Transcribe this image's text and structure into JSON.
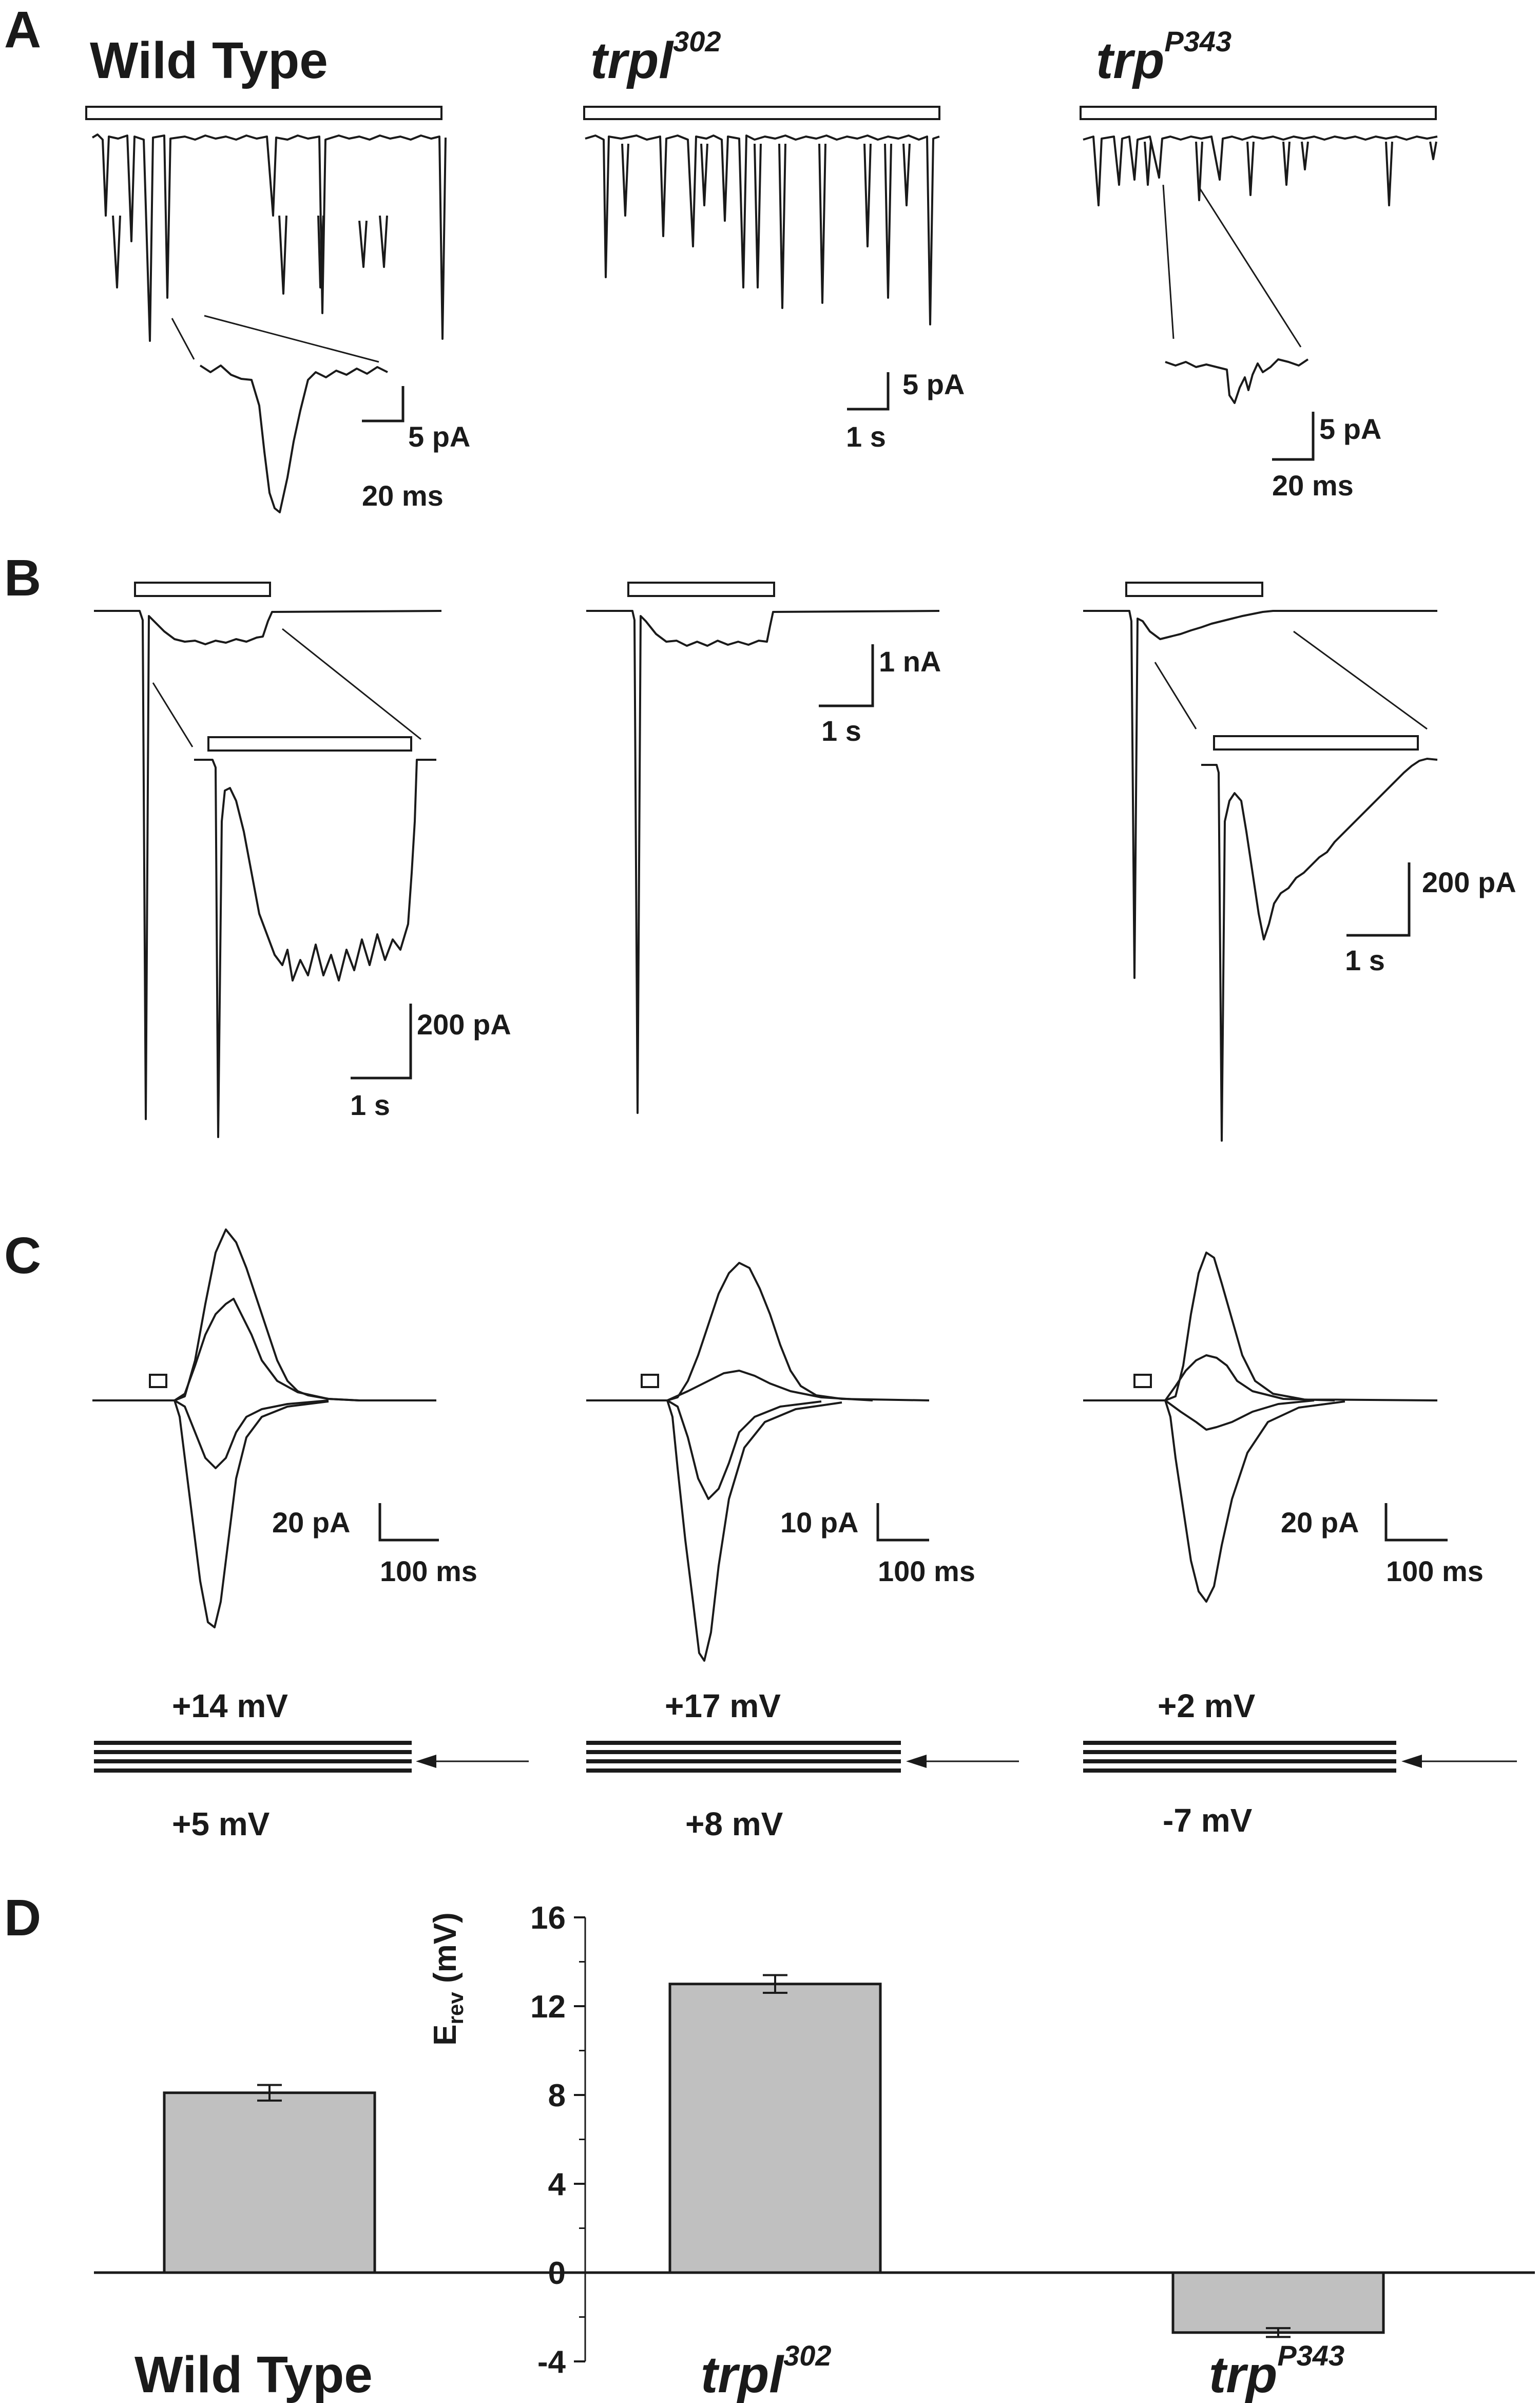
{
  "panel_labels": {
    "a": "A",
    "b": "B",
    "c": "C",
    "d": "D"
  },
  "genotypes": {
    "wt": {
      "name": "Wild Type"
    },
    "trpl": {
      "base": "trpl",
      "sup": "302"
    },
    "trp": {
      "base": "trp",
      "sup": "P343"
    }
  },
  "panel_a": {
    "wt_inset_scale": {
      "y": "5 pA",
      "x": "20 ms"
    },
    "trace_scale": {
      "y": "5 pA",
      "x": "1 s"
    },
    "trp_inset_scale": {
      "y": "5 pA",
      "x": "20 ms"
    }
  },
  "panel_b": {
    "trace_scale": {
      "y": "1 nA",
      "x": "1 s"
    },
    "wt_inset_scale": {
      "y": "200 pA",
      "x": "1 s"
    },
    "trp_inset_scale": {
      "y": "200 pA",
      "x": "1 s"
    }
  },
  "panel_c": {
    "wt": {
      "scale_y": "20 pA",
      "scale_x": "100 ms",
      "v_top": "+14 mV",
      "v_bottom": "+5 mV"
    },
    "trpl": {
      "scale_y": "10 pA",
      "scale_x": "100 ms",
      "v_top": "+17 mV",
      "v_bottom": "+8 mV"
    },
    "trp": {
      "scale_y": "20 pA",
      "scale_x": "100 ms",
      "v_top": "+2 mV",
      "v_bottom": "-7 mV"
    }
  },
  "chart_data": {
    "type": "bar",
    "ylabel": "E",
    "ylabel_sub": "rev",
    "ylabel_unit": " (mV)",
    "ylim": [
      -4,
      16
    ],
    "yticks": [
      -4,
      0,
      4,
      8,
      12,
      16
    ],
    "categories": [
      "Wild Type",
      "trpl302",
      "trpP343"
    ],
    "values": [
      8.1,
      13.0,
      -2.7
    ],
    "errors": [
      0.35,
      0.4,
      0.2
    ],
    "bar_color": "#c0c0c0",
    "grid": false
  }
}
